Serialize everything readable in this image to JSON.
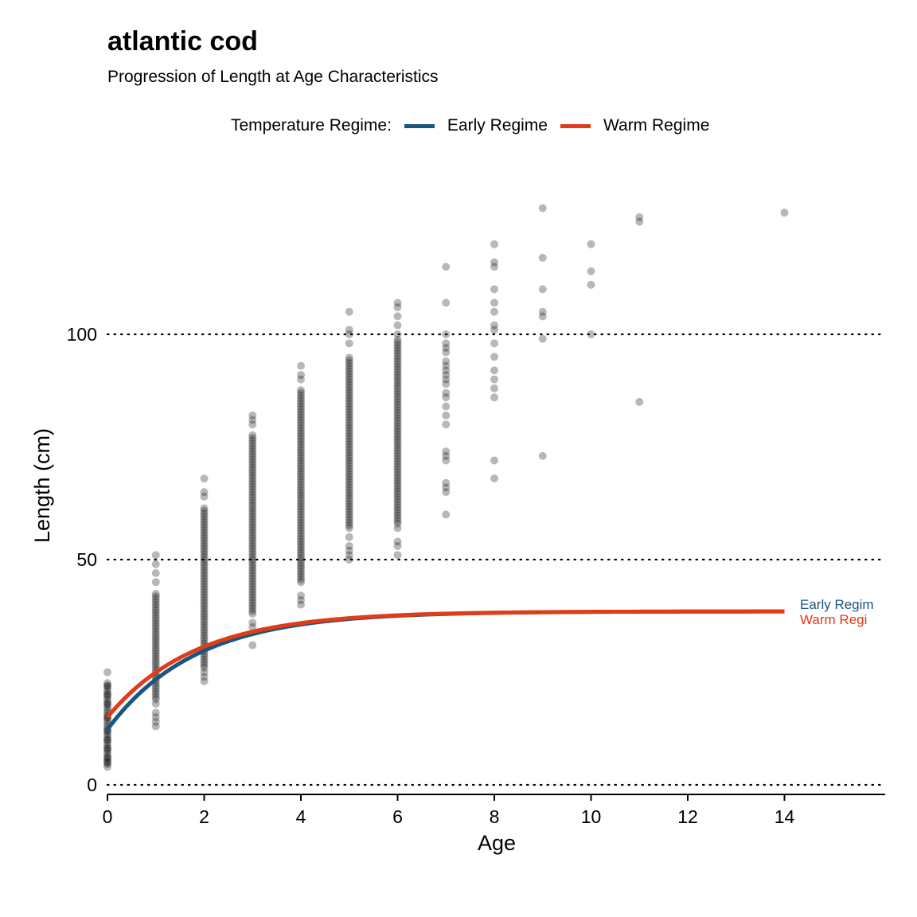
{
  "chart_data": {
    "type": "scatter",
    "title": "atlantic cod",
    "subtitle": "Progression of Length at Age Characteristics",
    "xlabel": "Age",
    "ylabel": "Length (cm)",
    "xlim": [
      0,
      16
    ],
    "ylim": [
      0,
      130
    ],
    "xticks": [
      0,
      2,
      4,
      6,
      8,
      10,
      12,
      14
    ],
    "yticks": [
      0,
      50,
      100
    ],
    "grid": "horizontal dotted",
    "legend": {
      "title": "Temperature Regime:",
      "placement": "top",
      "entries": [
        {
          "name": "Early Regime",
          "color": "#1a5580"
        },
        {
          "name": "Warm Regime",
          "color": "#e03c16"
        }
      ]
    },
    "point_color": "#000000",
    "point_opacity": 0.28,
    "points_by_age": [
      {
        "age": 0,
        "min": 4,
        "max": 23,
        "extra": [
          25,
          22,
          20,
          18,
          15,
          12,
          10,
          8,
          6,
          5
        ]
      },
      {
        "age": 1,
        "min": 19,
        "max": 43,
        "extra": [
          51,
          49,
          47,
          45,
          18,
          16,
          15,
          14,
          13
        ]
      },
      {
        "age": 2,
        "min": 26,
        "max": 62,
        "extra": [
          68,
          65,
          64,
          25,
          24,
          23
        ]
      },
      {
        "age": 3,
        "min": 38,
        "max": 78,
        "extra": [
          82,
          81,
          80,
          36,
          35,
          31
        ]
      },
      {
        "age": 4,
        "min": 45,
        "max": 88,
        "extra": [
          93,
          91,
          90,
          42,
          41,
          40
        ]
      },
      {
        "age": 5,
        "min": 57,
        "max": 95,
        "extra": [
          105,
          101,
          100,
          98,
          55,
          53,
          52,
          51,
          50
        ]
      },
      {
        "age": 6,
        "min": 58,
        "max": 99,
        "extra": [
          107,
          106,
          104,
          102,
          100,
          57,
          54,
          53,
          51
        ]
      },
      {
        "age": 7,
        "min": 0,
        "max": 0,
        "extra": [
          115,
          107,
          100,
          98,
          97,
          96,
          94,
          93,
          92,
          91,
          90,
          89,
          87,
          86,
          84,
          82,
          80,
          74,
          73,
          72,
          67,
          66,
          65,
          60
        ]
      },
      {
        "age": 8,
        "min": 0,
        "max": 0,
        "extra": [
          120,
          116,
          115,
          110,
          107,
          105,
          102,
          101,
          98,
          95,
          92,
          90,
          88,
          86,
          72,
          68
        ]
      },
      {
        "age": 9,
        "min": 0,
        "max": 0,
        "extra": [
          128,
          117,
          110,
          105,
          104,
          99,
          73
        ]
      },
      {
        "age": 10,
        "min": 0,
        "max": 0,
        "extra": [
          120,
          114,
          111,
          100
        ]
      },
      {
        "age": 11,
        "min": 0,
        "max": 0,
        "extra": [
          126,
          125,
          85
        ]
      },
      {
        "age": 14,
        "min": 0,
        "max": 0,
        "extra": [
          127
        ]
      }
    ],
    "series": [
      {
        "name": "Early Regime",
        "color": "#1a5580",
        "linf": 38.5,
        "k": 0.55,
        "t0": -0.7,
        "x": [
          0,
          0.5,
          1,
          1.5,
          2,
          3,
          4,
          5,
          6,
          7,
          8,
          10,
          12,
          14
        ],
        "y": [
          10.2,
          18.5,
          23.8,
          27.5,
          30.2,
          33.8,
          35.9,
          37.0,
          37.7,
          38.0,
          38.2,
          38.4,
          38.5,
          38.5
        ]
      },
      {
        "name": "Warm Regime",
        "color": "#e03c16",
        "linf": 38.5,
        "k": 0.55,
        "t0": -0.9,
        "x": [
          0,
          0.5,
          1,
          1.5,
          2,
          3,
          4,
          5,
          6,
          7,
          8,
          10,
          12,
          14
        ],
        "y": [
          11.7,
          19.3,
          24.3,
          27.9,
          30.5,
          34.0,
          36.0,
          37.1,
          37.7,
          38.1,
          38.3,
          38.4,
          38.5,
          38.5
        ]
      }
    ],
    "end_labels": [
      "Early Regim",
      "Warm Regi"
    ]
  }
}
